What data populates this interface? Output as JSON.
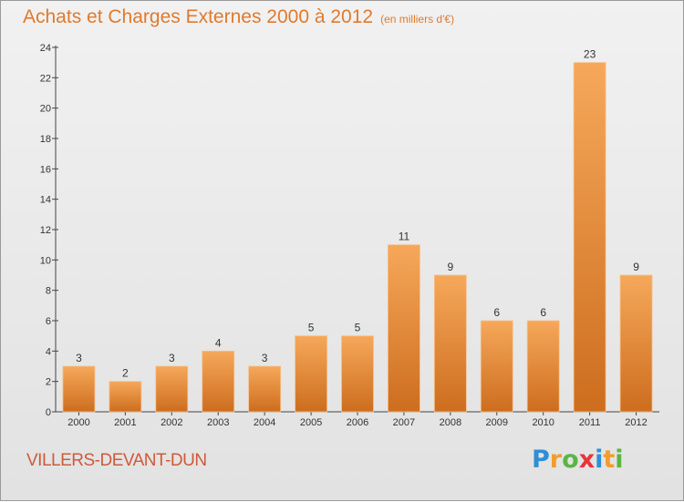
{
  "header": {
    "title": "Achats et Charges Externes 2000 à 2012",
    "subtitle": "(en milliers d'€)"
  },
  "footer": {
    "commune": "VILLERS-DEVANT-DUN",
    "logo_letters": [
      "P",
      "r",
      "o",
      "x",
      "i",
      "t",
      "i"
    ],
    "logo_colors": [
      "#2e8fd6",
      "#f39c2d",
      "#5bb544",
      "#e8343a",
      "#2e8fd6",
      "#f39c2d",
      "#5bb544"
    ]
  },
  "colors": {
    "title": "#e07a2c",
    "commune": "#cf5a3a",
    "bar_light": "#f6a85a",
    "bar_dark": "#cd6d1e",
    "axis": "#444444"
  },
  "chart_data": {
    "type": "bar",
    "title": "Achats et Charges Externes 2000 à 2012",
    "subtitle": "(en milliers d'€)",
    "xlabel": "",
    "ylabel": "",
    "categories": [
      "2000",
      "2001",
      "2002",
      "2003",
      "2004",
      "2005",
      "2006",
      "2007",
      "2008",
      "2009",
      "2010",
      "2011",
      "2012"
    ],
    "values": [
      3,
      2,
      3,
      4,
      3,
      5,
      5,
      11,
      9,
      6,
      6,
      23,
      9
    ],
    "ylim": [
      0,
      24
    ],
    "yticks": [
      0,
      2,
      4,
      6,
      8,
      10,
      12,
      14,
      16,
      18,
      20,
      22,
      24
    ],
    "grid": false,
    "legend": "none"
  }
}
